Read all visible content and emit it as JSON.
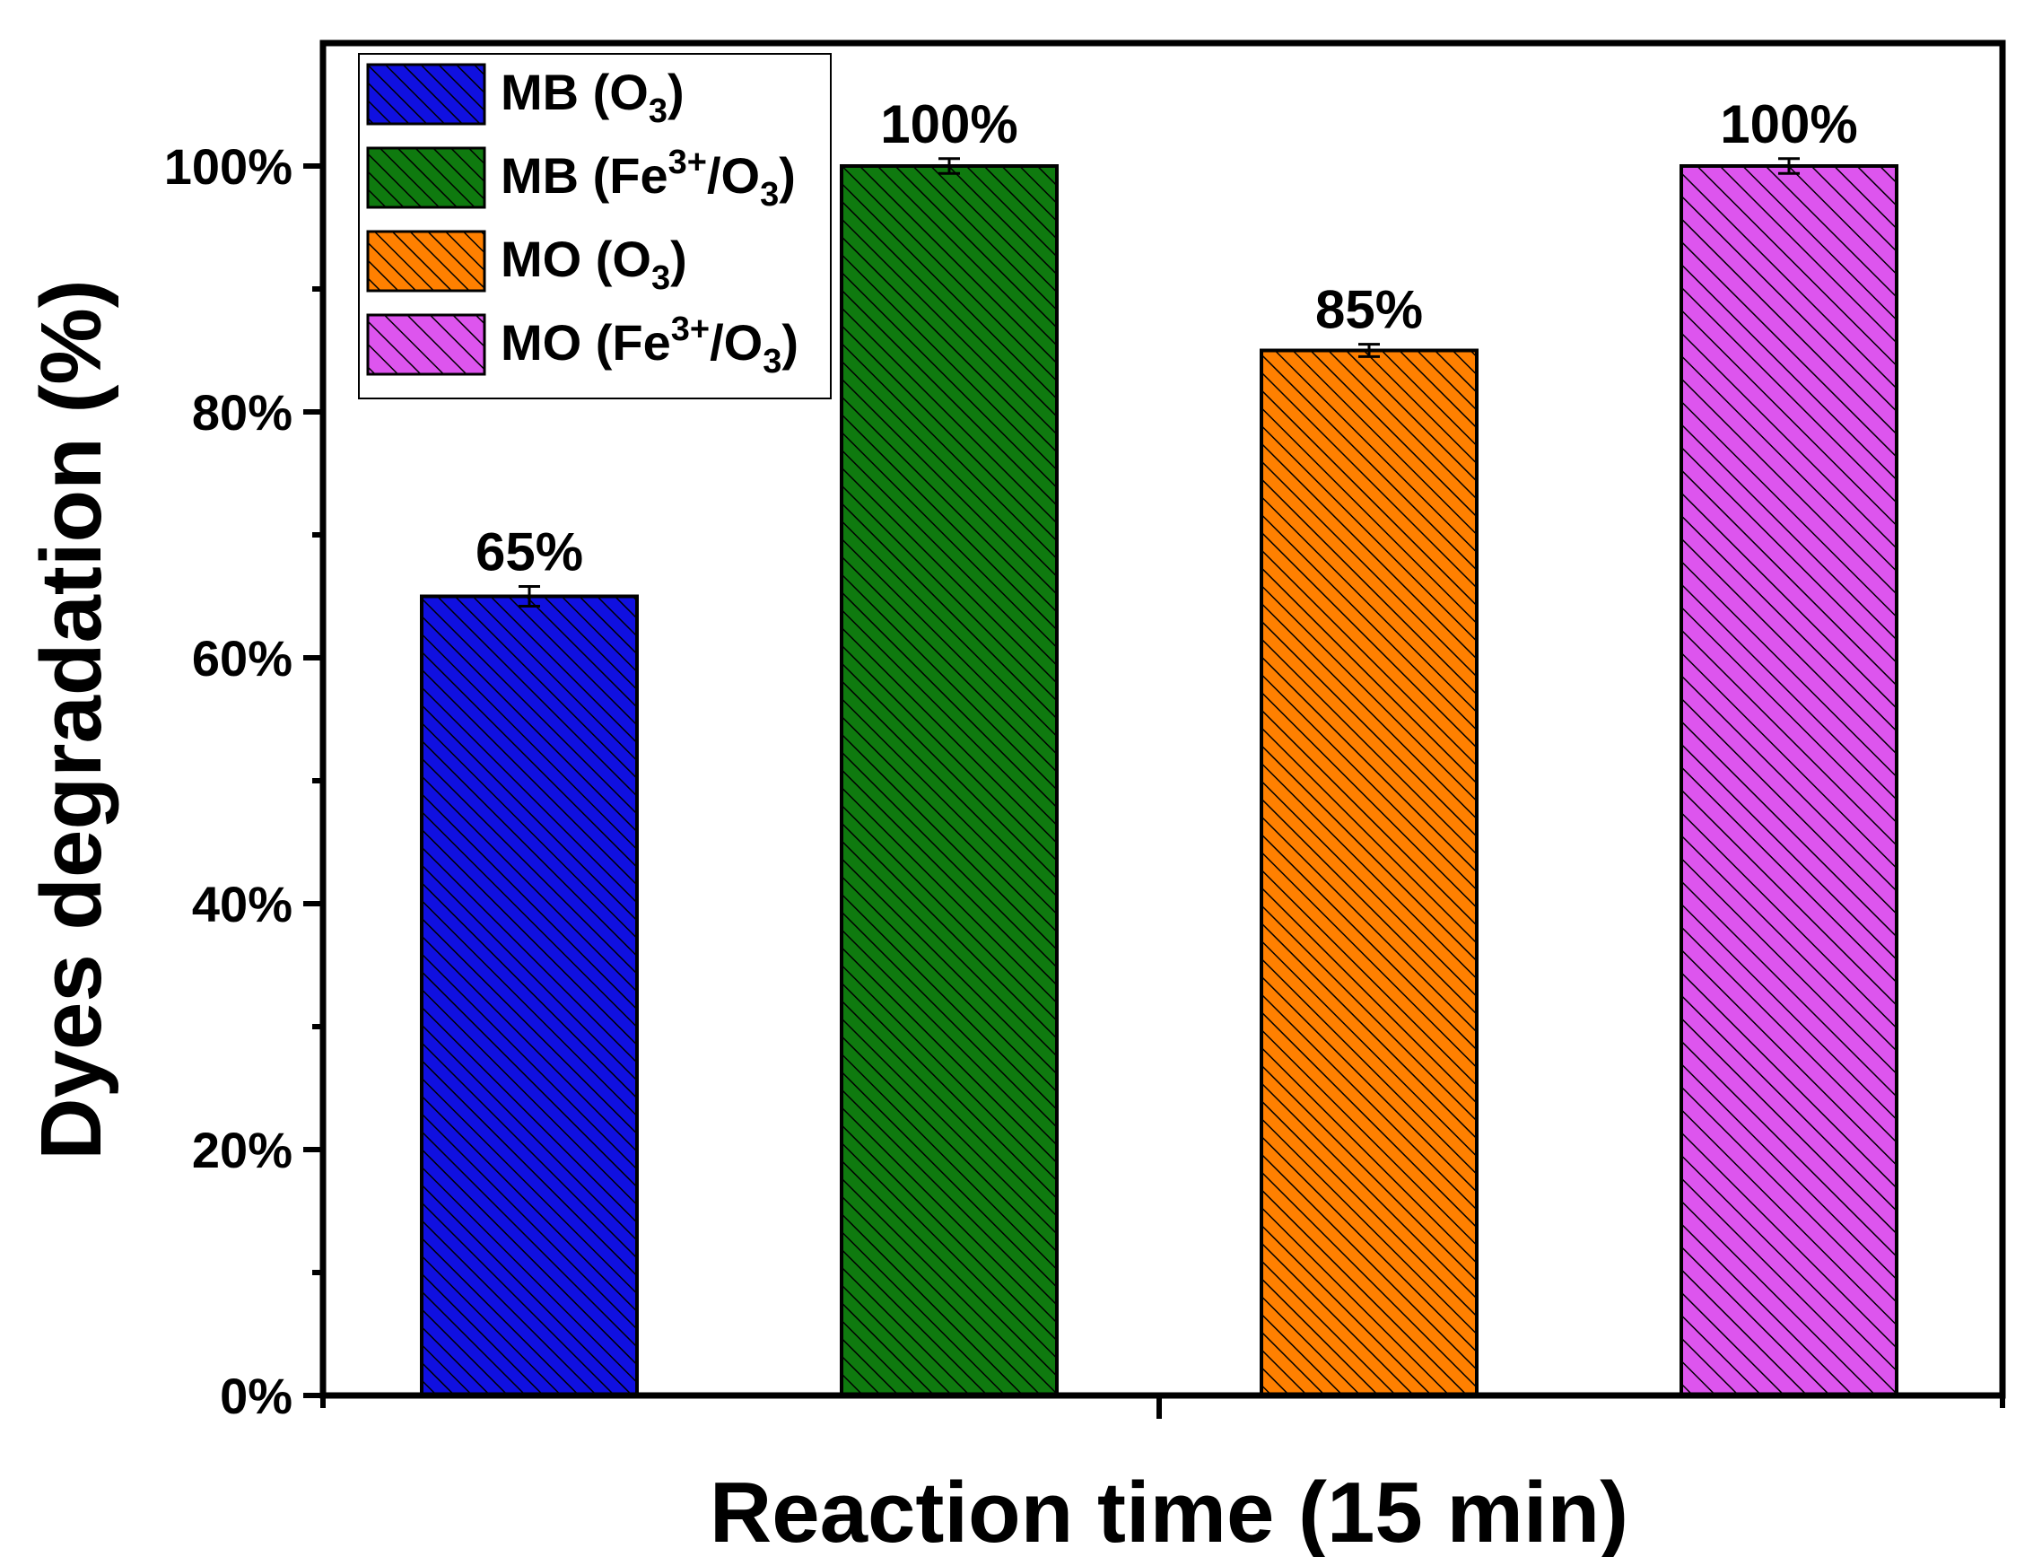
{
  "chart_data": {
    "type": "bar",
    "title": "",
    "xlabel": "Reaction time (15 min)",
    "ylabel": "Dyes degradation (%)",
    "ylim": [
      0,
      110
    ],
    "yticks": [
      0,
      20,
      40,
      60,
      80,
      100
    ],
    "ytick_labels": [
      "0%",
      "20%",
      "40%",
      "60%",
      "80%",
      "100%"
    ],
    "categories": [
      "MB (O3)",
      "MB (Fe3+/O3)",
      "MO (O3)",
      "MO (Fe3+/O3)"
    ],
    "series": [
      {
        "name": "MB (O3)",
        "label_main": "MB (O",
        "label_parts": [
          {
            "t": "MB (O",
            "s": ""
          },
          {
            "t": "3",
            "s": "sub"
          },
          {
            "t": ")",
            "s": ""
          }
        ],
        "value": 65,
        "error": 0.8,
        "data_label": "65%",
        "color": "#1010e0",
        "hatch": "dense"
      },
      {
        "name": "MB (Fe3+/O3)",
        "label_parts": [
          {
            "t": "MB (Fe",
            "s": ""
          },
          {
            "t": "3+",
            "s": "sup"
          },
          {
            "t": "/O",
            "s": ""
          },
          {
            "t": "3",
            "s": "sub"
          },
          {
            "t": ")",
            "s": ""
          }
        ],
        "value": 100,
        "error": 0.6,
        "data_label": "100%",
        "color": "#0f7a0f",
        "hatch": "dense"
      },
      {
        "name": "MO (O3)",
        "label_parts": [
          {
            "t": "MO (O",
            "s": ""
          },
          {
            "t": "3",
            "s": "sub"
          },
          {
            "t": ")",
            "s": ""
          }
        ],
        "value": 85,
        "error": 0.5,
        "data_label": "85%",
        "color": "#ff8000",
        "hatch": "dense"
      },
      {
        "name": "MO (Fe3+/O3)",
        "label_parts": [
          {
            "t": "MO (Fe",
            "s": ""
          },
          {
            "t": "3+",
            "s": "sup"
          },
          {
            "t": "/O",
            "s": ""
          },
          {
            "t": "3",
            "s": "sub"
          },
          {
            "t": ")",
            "s": ""
          }
        ],
        "value": 100,
        "error": 0.6,
        "data_label": "100%",
        "color": "#dd55ee",
        "hatch": "sparse"
      }
    ],
    "legend_position": "top-left",
    "grid": false
  }
}
